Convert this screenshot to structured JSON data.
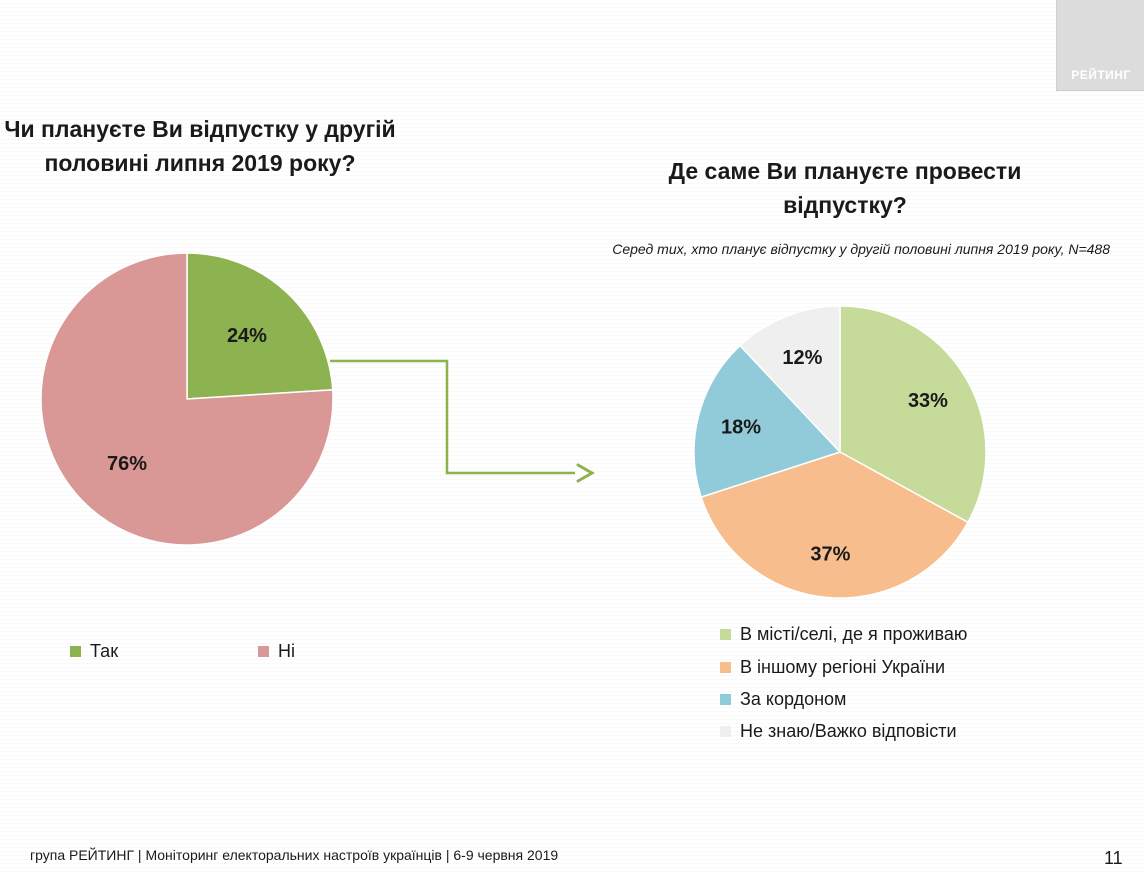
{
  "logo": {
    "text": "РЕЙТИНГ"
  },
  "left_title_lines": [
    "Чи плануєте Ви відпустку у другій",
    "половині липня 2019 року?"
  ],
  "right_title_lines": [
    "Де саме Ви плануєте провести",
    "відпустку?"
  ],
  "right_subtitle": "Серед тих, хто планує відпустку у другій половині липня 2019 року, N=488",
  "chart_data": [
    {
      "type": "pie",
      "title": "Чи плануєте Ви відпустку у другій половині липня 2019 року?",
      "categories": [
        "Так",
        "Ні"
      ],
      "values": [
        24,
        76
      ],
      "labels": [
        "24%",
        "76%"
      ],
      "colors": [
        "#8db250",
        "#d99795"
      ],
      "legend_position": "bottom"
    },
    {
      "type": "pie",
      "title": "Де саме Ви плануєте провести відпустку?",
      "subtitle": "Серед тих, хто планує відпустку у другій половині липня 2019 року, N=488",
      "categories": [
        "В місті/селі, де я проживаю",
        "В іншому регіоні України",
        "За кордоном",
        "Не знаю/Важко відповісти"
      ],
      "values": [
        33,
        37,
        18,
        12
      ],
      "labels": [
        "33%",
        "37%",
        "18%",
        "12%"
      ],
      "colors": [
        "#c6da9a",
        "#f7bd8d",
        "#91cbd9",
        "#efefef"
      ],
      "legend_position": "bottom"
    }
  ],
  "connector_color": "#8db250",
  "footer": "група РЕЙТИНГ | Моніторинг електоральних настроїв українців  | 6-9 червня 2019",
  "page_number": "11"
}
